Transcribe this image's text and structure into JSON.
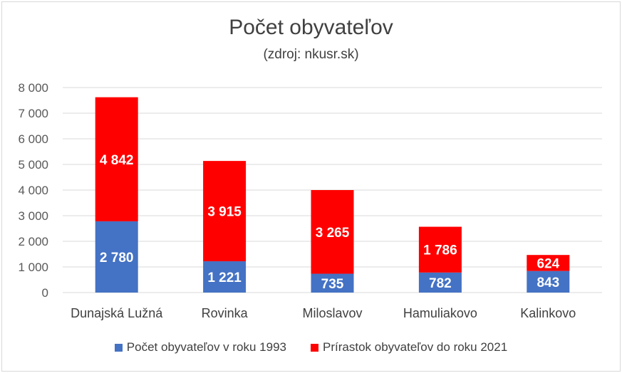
{
  "chart_data": {
    "type": "bar",
    "stacked": true,
    "title": "Počet obyvateľov",
    "subtitle": "(zdroj: nkusr.sk)",
    "categories": [
      "Dunajská Lužná",
      "Rovinka",
      "Miloslavov",
      "Hamuliakovo",
      "Kalinkovo"
    ],
    "series": [
      {
        "name": "Počet obyvateľov v roku 1993",
        "values": [
          2780,
          1221,
          735,
          782,
          843
        ],
        "labels": [
          "2 780",
          "1 221",
          "735",
          "782",
          "843"
        ],
        "color": "#4472C4"
      },
      {
        "name": "Prírastok obyvateľov do roku 2021",
        "values": [
          4842,
          3915,
          3265,
          1786,
          624
        ],
        "labels": [
          "4 842",
          "3 915",
          "3 265",
          "1 786",
          "624"
        ],
        "color": "#FF0000"
      }
    ],
    "ylim": [
      0,
      8000
    ],
    "yticks": [
      0,
      1000,
      2000,
      3000,
      4000,
      5000,
      6000,
      7000,
      8000
    ],
    "ytick_labels": [
      "0",
      "1 000",
      "2 000",
      "3 000",
      "4 000",
      "5 000",
      "6 000",
      "7 000",
      "8 000"
    ],
    "grid": true,
    "legend_position": "bottom"
  }
}
